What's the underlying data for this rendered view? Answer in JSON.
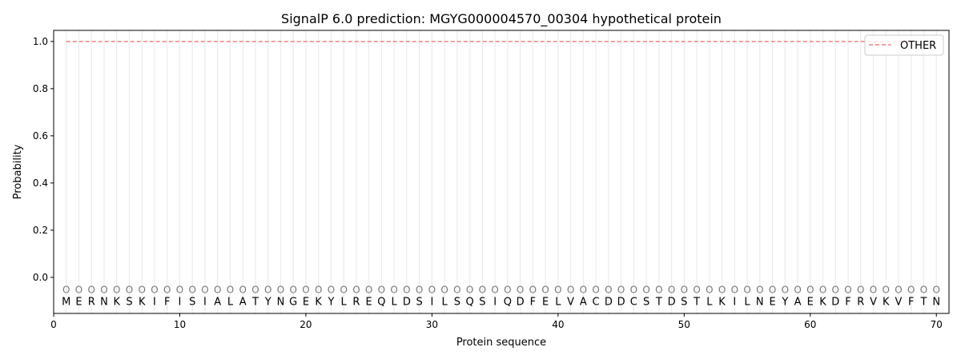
{
  "chart_data": {
    "type": "line",
    "title": "SignalP 6.0 prediction: MGYG000004570_00304 hypothetical protein",
    "xlabel": "Protein sequence",
    "ylabel": "Probability",
    "xlim": [
      0,
      71
    ],
    "ylim": [
      -0.153,
      1.047
    ],
    "xticks": [
      0,
      10,
      20,
      30,
      40,
      50,
      60,
      70
    ],
    "yticks": [
      0.0,
      0.2,
      0.4,
      0.6,
      0.8,
      1.0
    ],
    "ytick_labels": [
      "0.0",
      "0.2",
      "0.4",
      "0.6",
      "0.8",
      "1.0"
    ],
    "grid": "vertical lines at each residue",
    "legend_position": "top-right",
    "sequence": "MERNKSKIFISIALATYNGEKYLREQLDSILSQSIQDFELVACDDCSTDSTLKILNEYAEKDFRVKVFTN",
    "predicted_labels": "OOOOOOOOOOOOOOOOOOOOOOOOOOOOOOOOOOOOOOOOOOOOOOOOOOOOOOOOOOOOOOOOOOOOOO",
    "series": [
      {
        "name": "OTHER",
        "color": "#f08080",
        "style": "dashed",
        "x_start": 1,
        "x_end": 70,
        "value": 1.0
      }
    ]
  }
}
